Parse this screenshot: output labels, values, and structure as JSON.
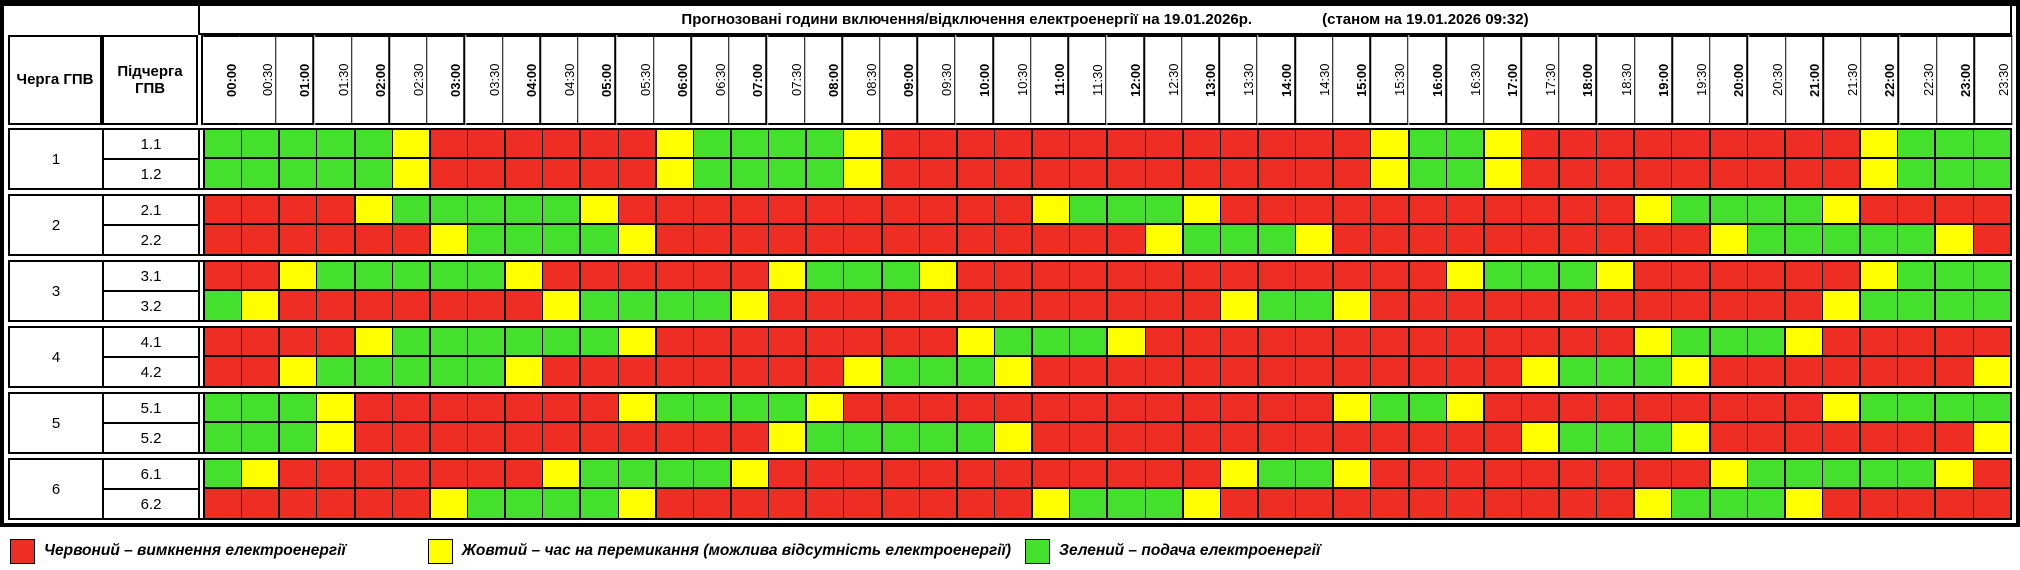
{
  "title": {
    "main": "Прогнозовані години включення/відключення електроенергії на 19.01.2026р.",
    "status": "(станом на 19.01.2026 09:32)"
  },
  "header": {
    "queue_col": "Черга ГПВ",
    "subqueue_col": "Підчерга ГПВ",
    "time_slots": [
      "00:00",
      "00:30",
      "01:00",
      "01:30",
      "02:00",
      "02:30",
      "03:00",
      "03:30",
      "04:00",
      "04:30",
      "05:00",
      "05:30",
      "06:00",
      "06:30",
      "07:00",
      "07:30",
      "08:00",
      "08:30",
      "09:00",
      "09:30",
      "10:00",
      "10:30",
      "11:00",
      "11:30",
      "12:00",
      "12:30",
      "13:00",
      "13:30",
      "14:00",
      "14:30",
      "15:00",
      "15:30",
      "16:00",
      "16:30",
      "17:00",
      "17:30",
      "18:00",
      "18:30",
      "19:00",
      "19:30",
      "20:00",
      "20:30",
      "21:00",
      "21:30",
      "22:00",
      "22:30",
      "23:00",
      "23:30"
    ]
  },
  "colors": {
    "R": "#ee2e24",
    "Y": "#ffff00",
    "G": "#45e02d"
  },
  "schedule": {
    "groups": [
      {
        "queue": "1",
        "rows": [
          {
            "label": "1.1",
            "slots": "GGGGGYRRRRRRYGGGGYRRRRRRRRRRRRRYGGYRRRRRRRRRYGGG"
          },
          {
            "label": "1.2",
            "slots": "GGGGGYRRRRRRYGGGGYRRRRRRRRRRRRRYGGYRRRRRRRRRYGGG"
          }
        ]
      },
      {
        "queue": "2",
        "rows": [
          {
            "label": "2.1",
            "slots": "RRRRYGGGGGYRRRRRRRRRRRYGGGYRRRRRRRRRRRYGGGGYRRRR"
          },
          {
            "label": "2.2",
            "slots": "RRRRRRYGGGGYRRRRRRRRRRRRRYGGGYRRRRRRRRRRYGGGGGYR"
          }
        ]
      },
      {
        "queue": "3",
        "rows": [
          {
            "label": "3.1",
            "slots": "RRYGGGGGYRRRRRRYGGGYRRRRRRRRRRRRRYGGGYRRRRRRYGGG"
          },
          {
            "label": "3.2",
            "slots": "GYRRRRRRRYGGGGYRRRRRRRRRRRRYGGYRRRRRRRRRRRRYGGGG"
          }
        ]
      },
      {
        "queue": "4",
        "rows": [
          {
            "label": "4.1",
            "slots": "RRRRYGGGGGGYRRRRRRRRYGGGYRRRRRRRRRRRRRYGGGYRRRRR"
          },
          {
            "label": "4.2",
            "slots": "RRYGGGGGYRRRRRRRRYGGGYRRRRRRRRRRRRRYGGGYRRRRRRRY"
          }
        ]
      },
      {
        "queue": "5",
        "rows": [
          {
            "label": "5.1",
            "slots": "GGGYRRRRRRRYGGGGYRRRRRRRRRRRRRYGGYRRRRRRRRRYGGGG"
          },
          {
            "label": "5.2",
            "slots": "GGGYRRRRRRRRRRRYGGGGGYRRRRRRRRRRRRRYGGGYRRRRRRRY"
          }
        ]
      },
      {
        "queue": "6",
        "rows": [
          {
            "label": "6.1",
            "slots": "GYRRRRRRRYGGGGYRRRRRRRRRRRRYGGYRRRRRRRRRYGGGGGYR"
          },
          {
            "label": "6.2",
            "slots": "RRRRRRYGGGGYRRRRRRRRRRYGGGYRRRRRRRRRRRYGGGYRRRRR"
          }
        ]
      }
    ]
  },
  "legend": [
    {
      "key": "R",
      "label": "Червоний – вимкнення електроенергії"
    },
    {
      "key": "Y",
      "label": "Жовтий – час на перемикання (можлива відсутність електроенергії)"
    },
    {
      "key": "G",
      "label": "Зелений – подача електроенергії"
    }
  ]
}
